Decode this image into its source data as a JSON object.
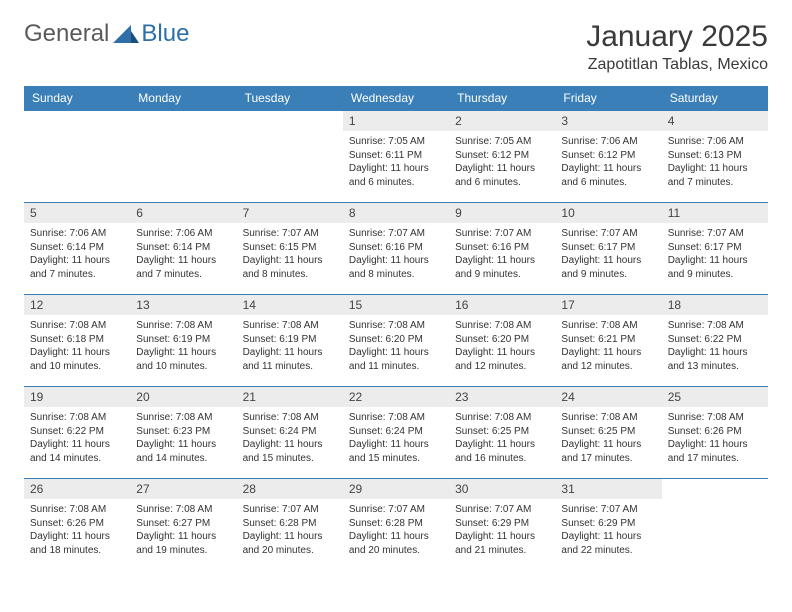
{
  "brand": {
    "part1": "General",
    "part2": "Blue"
  },
  "title": "January 2025",
  "location": "Zapotitlan Tablas, Mexico",
  "colors": {
    "header_bg": "#3b7fb8",
    "header_text": "#ffffff",
    "daynum_bg": "#ececec",
    "cell_border": "#3b7fb8",
    "body_text": "#333333",
    "logo_gray": "#5a5a5a",
    "logo_blue": "#2e6fa8"
  },
  "weekdays": [
    "Sunday",
    "Monday",
    "Tuesday",
    "Wednesday",
    "Thursday",
    "Friday",
    "Saturday"
  ],
  "weeks": [
    [
      null,
      null,
      null,
      {
        "n": "1",
        "sunrise": "7:05 AM",
        "sunset": "6:11 PM",
        "daylight": "11 hours and 6 minutes."
      },
      {
        "n": "2",
        "sunrise": "7:05 AM",
        "sunset": "6:12 PM",
        "daylight": "11 hours and 6 minutes."
      },
      {
        "n": "3",
        "sunrise": "7:06 AM",
        "sunset": "6:12 PM",
        "daylight": "11 hours and 6 minutes."
      },
      {
        "n": "4",
        "sunrise": "7:06 AM",
        "sunset": "6:13 PM",
        "daylight": "11 hours and 7 minutes."
      }
    ],
    [
      {
        "n": "5",
        "sunrise": "7:06 AM",
        "sunset": "6:14 PM",
        "daylight": "11 hours and 7 minutes."
      },
      {
        "n": "6",
        "sunrise": "7:06 AM",
        "sunset": "6:14 PM",
        "daylight": "11 hours and 7 minutes."
      },
      {
        "n": "7",
        "sunrise": "7:07 AM",
        "sunset": "6:15 PM",
        "daylight": "11 hours and 8 minutes."
      },
      {
        "n": "8",
        "sunrise": "7:07 AM",
        "sunset": "6:16 PM",
        "daylight": "11 hours and 8 minutes."
      },
      {
        "n": "9",
        "sunrise": "7:07 AM",
        "sunset": "6:16 PM",
        "daylight": "11 hours and 9 minutes."
      },
      {
        "n": "10",
        "sunrise": "7:07 AM",
        "sunset": "6:17 PM",
        "daylight": "11 hours and 9 minutes."
      },
      {
        "n": "11",
        "sunrise": "7:07 AM",
        "sunset": "6:17 PM",
        "daylight": "11 hours and 9 minutes."
      }
    ],
    [
      {
        "n": "12",
        "sunrise": "7:08 AM",
        "sunset": "6:18 PM",
        "daylight": "11 hours and 10 minutes."
      },
      {
        "n": "13",
        "sunrise": "7:08 AM",
        "sunset": "6:19 PM",
        "daylight": "11 hours and 10 minutes."
      },
      {
        "n": "14",
        "sunrise": "7:08 AM",
        "sunset": "6:19 PM",
        "daylight": "11 hours and 11 minutes."
      },
      {
        "n": "15",
        "sunrise": "7:08 AM",
        "sunset": "6:20 PM",
        "daylight": "11 hours and 11 minutes."
      },
      {
        "n": "16",
        "sunrise": "7:08 AM",
        "sunset": "6:20 PM",
        "daylight": "11 hours and 12 minutes."
      },
      {
        "n": "17",
        "sunrise": "7:08 AM",
        "sunset": "6:21 PM",
        "daylight": "11 hours and 12 minutes."
      },
      {
        "n": "18",
        "sunrise": "7:08 AM",
        "sunset": "6:22 PM",
        "daylight": "11 hours and 13 minutes."
      }
    ],
    [
      {
        "n": "19",
        "sunrise": "7:08 AM",
        "sunset": "6:22 PM",
        "daylight": "11 hours and 14 minutes."
      },
      {
        "n": "20",
        "sunrise": "7:08 AM",
        "sunset": "6:23 PM",
        "daylight": "11 hours and 14 minutes."
      },
      {
        "n": "21",
        "sunrise": "7:08 AM",
        "sunset": "6:24 PM",
        "daylight": "11 hours and 15 minutes."
      },
      {
        "n": "22",
        "sunrise": "7:08 AM",
        "sunset": "6:24 PM",
        "daylight": "11 hours and 15 minutes."
      },
      {
        "n": "23",
        "sunrise": "7:08 AM",
        "sunset": "6:25 PM",
        "daylight": "11 hours and 16 minutes."
      },
      {
        "n": "24",
        "sunrise": "7:08 AM",
        "sunset": "6:25 PM",
        "daylight": "11 hours and 17 minutes."
      },
      {
        "n": "25",
        "sunrise": "7:08 AM",
        "sunset": "6:26 PM",
        "daylight": "11 hours and 17 minutes."
      }
    ],
    [
      {
        "n": "26",
        "sunrise": "7:08 AM",
        "sunset": "6:26 PM",
        "daylight": "11 hours and 18 minutes."
      },
      {
        "n": "27",
        "sunrise": "7:08 AM",
        "sunset": "6:27 PM",
        "daylight": "11 hours and 19 minutes."
      },
      {
        "n": "28",
        "sunrise": "7:07 AM",
        "sunset": "6:28 PM",
        "daylight": "11 hours and 20 minutes."
      },
      {
        "n": "29",
        "sunrise": "7:07 AM",
        "sunset": "6:28 PM",
        "daylight": "11 hours and 20 minutes."
      },
      {
        "n": "30",
        "sunrise": "7:07 AM",
        "sunset": "6:29 PM",
        "daylight": "11 hours and 21 minutes."
      },
      {
        "n": "31",
        "sunrise": "7:07 AM",
        "sunset": "6:29 PM",
        "daylight": "11 hours and 22 minutes."
      },
      null
    ]
  ],
  "labels": {
    "sunrise": "Sunrise: ",
    "sunset": "Sunset: ",
    "daylight": "Daylight: "
  }
}
